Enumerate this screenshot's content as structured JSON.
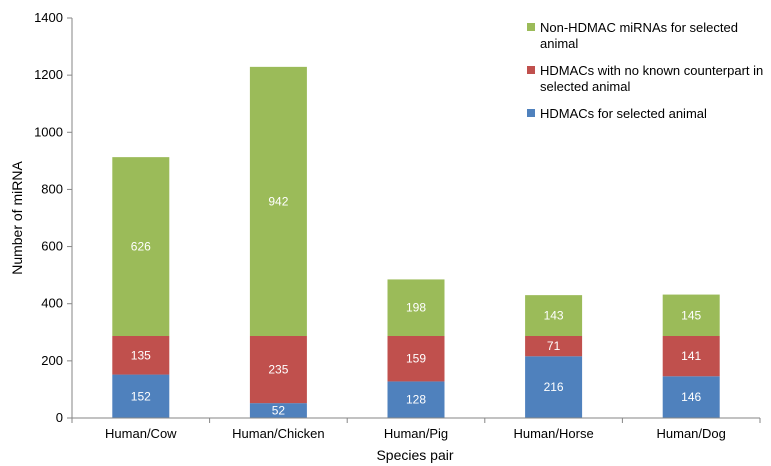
{
  "chart_data": {
    "type": "bar",
    "stacked": true,
    "title": "",
    "xlabel": "Species pair",
    "ylabel": "Number of miRNA",
    "ylim": [
      0,
      1400
    ],
    "yticks": [
      "0",
      "200",
      "400",
      "600",
      "800",
      "1000",
      "1200",
      "1400"
    ],
    "grid": false,
    "legend_position": "top-right",
    "categories": [
      "Human/Cow",
      "Human/Chicken",
      "Human/Pig",
      "Human/Horse",
      "Human/Dog"
    ],
    "series": [
      {
        "name": "HDMACs for selected animal",
        "color": "#4f81bd",
        "values": [
          152,
          52,
          128,
          216,
          146
        ],
        "labels": [
          "152",
          "52",
          "128",
          "216",
          "146"
        ]
      },
      {
        "name": "HDMACs with no known counterpart in selected animal",
        "color": "#c0504d",
        "values": [
          135,
          235,
          159,
          71,
          141
        ],
        "labels": [
          "135",
          "235",
          "159",
          "71",
          "141"
        ]
      },
      {
        "name": "Non-HDMAC miRNAs for selected animal",
        "color": "#9bbb59",
        "values": [
          626,
          942,
          198,
          143,
          145
        ],
        "labels": [
          "626",
          "942",
          "198",
          "143",
          "145"
        ]
      }
    ],
    "legend_lines": [
      [
        "Non-HDMAC miRNAs for selected",
        "animal"
      ],
      [
        "HDMACs with no known counterpart in",
        "selected animal"
      ],
      [
        "HDMACs for selected animal"
      ]
    ]
  }
}
